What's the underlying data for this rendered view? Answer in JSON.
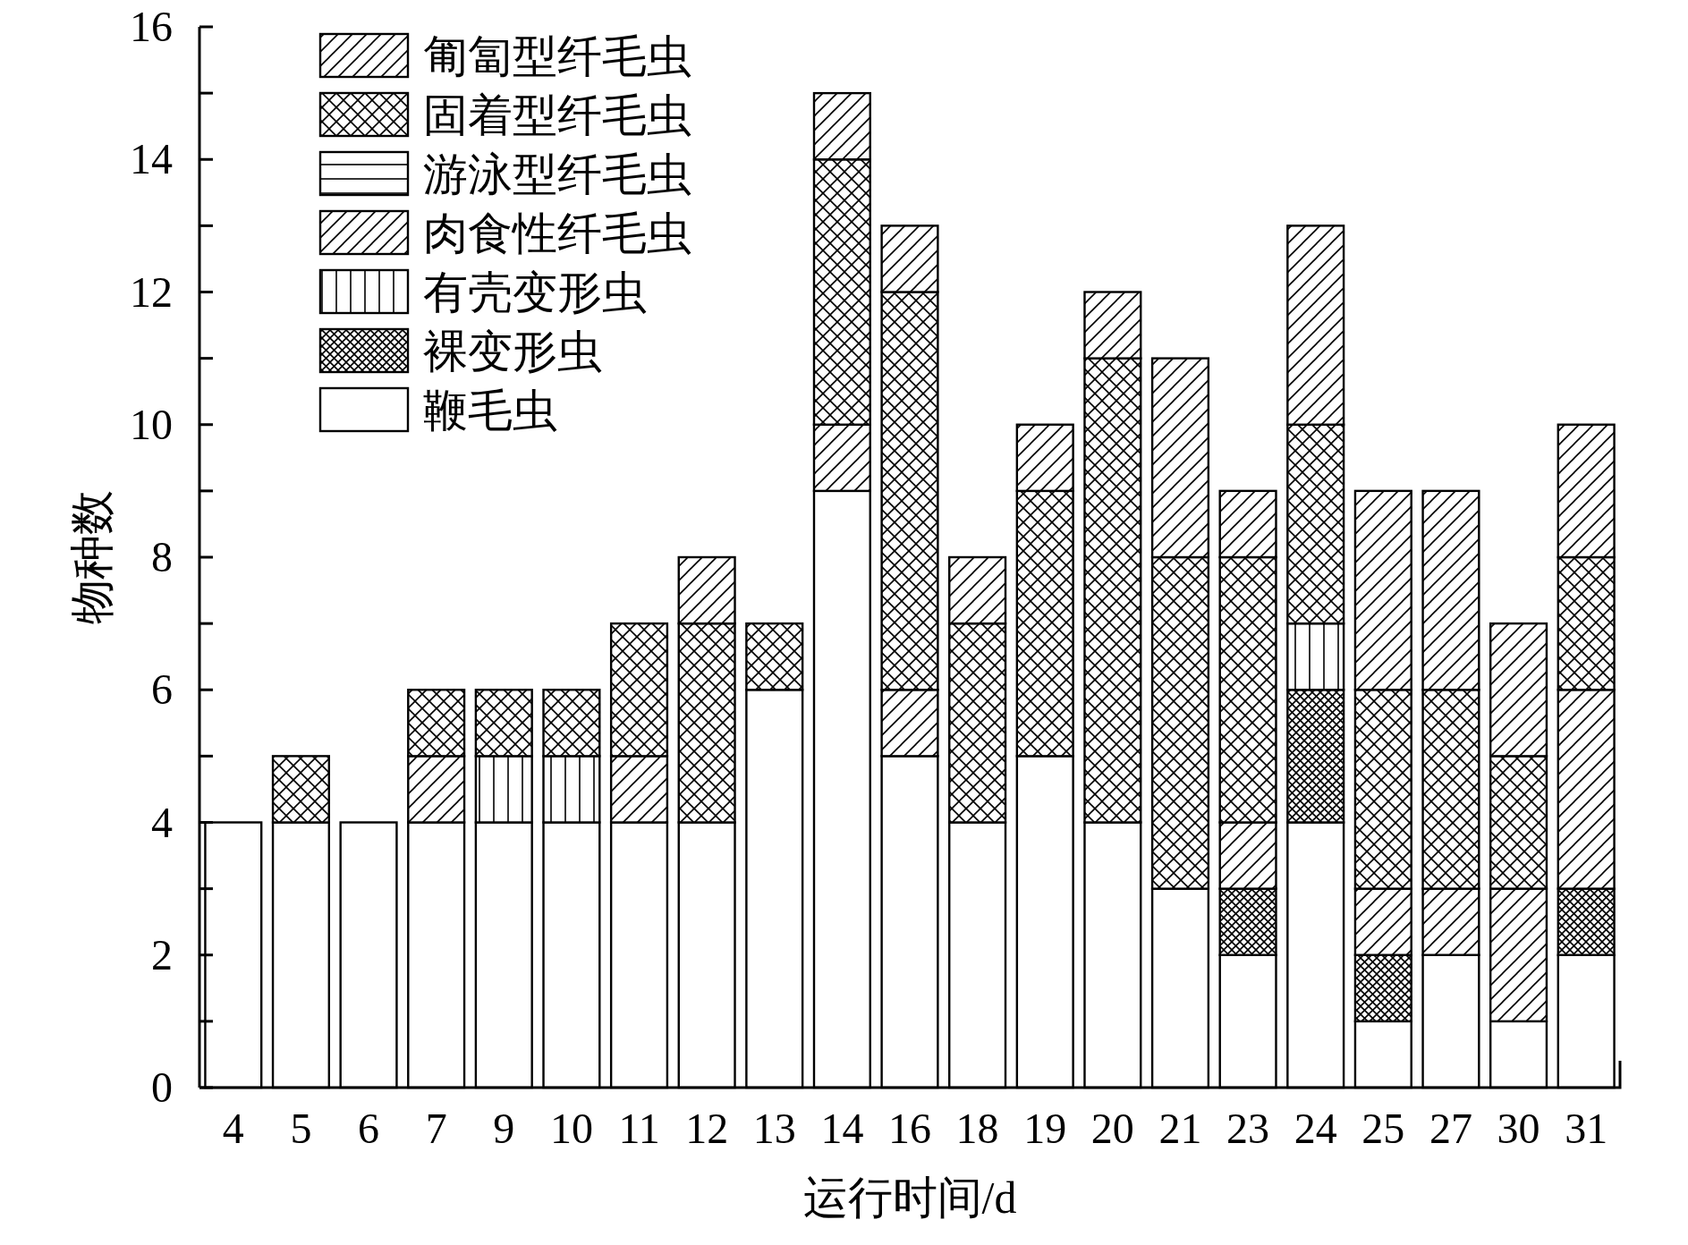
{
  "chart_data": {
    "type": "bar",
    "stacked": true,
    "xlabel": "运行时间/d",
    "ylabel": "物种数",
    "legend": "top left",
    "grid": false,
    "categories": [
      "4",
      "5",
      "6",
      "7",
      "9",
      "10",
      "11",
      "12",
      "13",
      "14",
      "16",
      "18",
      "19",
      "20",
      "21",
      "23",
      "24",
      "25",
      "27",
      "30",
      "31"
    ],
    "ylim": [
      0,
      16
    ],
    "yticks": [
      0,
      {
        "value": 1,
        "label": null
      },
      2,
      {
        "value": 3,
        "label": null
      },
      4,
      {
        "value": 5,
        "label": null
      },
      6,
      {
        "value": 7,
        "label": null
      },
      8,
      {
        "value": 9,
        "label": null
      },
      10,
      {
        "value": 11,
        "label": null
      },
      12,
      {
        "value": 13,
        "label": null
      },
      14,
      {
        "value": 15,
        "label": null
      },
      16
    ],
    "series": [
      {
        "name": "鞭毛虫",
        "color": "#ffffff",
        "values": [
          4,
          4,
          4,
          4,
          4,
          4,
          4,
          4,
          6,
          9,
          5,
          4,
          5,
          4,
          3,
          2,
          4,
          1,
          2,
          1,
          2
        ]
      },
      {
        "name": "裸变形虫",
        "color": "#000000",
        "values": [
          0,
          0,
          0,
          0,
          0,
          0,
          0,
          0,
          0,
          0,
          0,
          0,
          0,
          0,
          0,
          1,
          2,
          1,
          0,
          0,
          1
        ]
      },
      {
        "name": "有壳变形虫",
        "color": "#000000",
        "values": [
          0,
          0,
          0,
          0,
          1,
          1,
          0,
          0,
          0,
          0,
          0,
          0,
          0,
          0,
          0,
          0,
          1,
          0,
          0,
          0,
          0
        ]
      },
      {
        "name": "肉食性纤毛虫",
        "color": "#000000",
        "values": [
          0,
          0,
          0,
          1,
          0,
          0,
          1,
          0,
          0,
          1,
          1,
          0,
          0,
          0,
          0,
          1,
          0,
          1,
          1,
          2,
          3
        ]
      },
      {
        "name": "游泳型纤毛虫",
        "color": "#000000",
        "values": [
          0,
          0,
          0,
          0,
          0,
          0,
          0,
          0,
          0,
          0,
          0,
          0,
          0,
          0,
          0,
          0,
          0,
          0,
          0,
          0,
          0
        ]
      },
      {
        "name": "固着型纤毛虫",
        "color": "#000000",
        "values": [
          0,
          1,
          0,
          1,
          1,
          1,
          2,
          3,
          1,
          4,
          6,
          3,
          4,
          7,
          5,
          4,
          3,
          3,
          3,
          2,
          2
        ]
      },
      {
        "name": "匍匐型纤毛虫",
        "color": "#000000",
        "values": [
          0,
          0,
          0,
          0,
          0,
          0,
          0,
          1,
          0,
          1,
          1,
          1,
          1,
          1,
          3,
          1,
          3,
          3,
          3,
          2,
          2
        ]
      }
    ]
  }
}
